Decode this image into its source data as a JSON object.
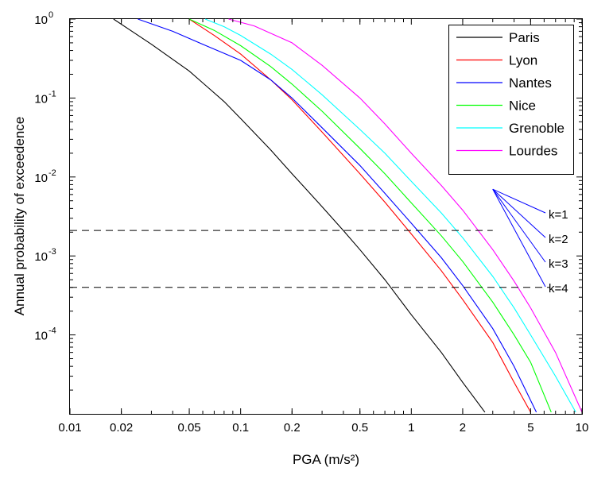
{
  "chart_data": {
    "type": "line",
    "xscale": "log",
    "yscale": "log",
    "xlim": [
      0.01,
      10
    ],
    "ylim": [
      1e-05,
      1
    ],
    "xlabel": "PGA (m/s²)",
    "ylabel": "Annual probability of exceedence",
    "x_ticks": [
      {
        "value": 0.01,
        "label": "0.01"
      },
      {
        "value": 0.02,
        "label": "0.02"
      },
      {
        "value": 0.05,
        "label": "0.05"
      },
      {
        "value": 0.1,
        "label": "0.1"
      },
      {
        "value": 0.2,
        "label": "0.2"
      },
      {
        "value": 0.5,
        "label": "0.5"
      },
      {
        "value": 1,
        "label": "1"
      },
      {
        "value": 2,
        "label": "2"
      },
      {
        "value": 5,
        "label": "5"
      },
      {
        "value": 10,
        "label": "10"
      }
    ],
    "y_ticks": [
      {
        "value": 1,
        "label": "10",
        "exp": "0"
      },
      {
        "value": 0.1,
        "label": "10",
        "exp": "-1"
      },
      {
        "value": 0.01,
        "label": "10",
        "exp": "-2"
      },
      {
        "value": 0.001,
        "label": "10",
        "exp": "-3"
      },
      {
        "value": 0.0001,
        "label": "10",
        "exp": "-4"
      }
    ],
    "grid": false,
    "legend_position": "top-right",
    "series": [
      {
        "name": "Paris",
        "color": "#000000",
        "points": [
          [
            0.018,
            1
          ],
          [
            0.022,
            0.75
          ],
          [
            0.03,
            0.48
          ],
          [
            0.05,
            0.22
          ],
          [
            0.08,
            0.09
          ],
          [
            0.1,
            0.055
          ],
          [
            0.15,
            0.022
          ],
          [
            0.2,
            0.011
          ],
          [
            0.3,
            0.0042
          ],
          [
            0.4,
            0.0021
          ],
          [
            0.5,
            0.0012
          ],
          [
            0.7,
            0.0005
          ],
          [
            1,
            0.00018
          ],
          [
            1.5,
            6e-05
          ],
          [
            2,
            2.5e-05
          ],
          [
            2.7,
            1.05e-05
          ]
        ]
      },
      {
        "name": "Lyon",
        "color": "#ff0000",
        "points": [
          [
            0.05,
            1
          ],
          [
            0.07,
            0.62
          ],
          [
            0.1,
            0.36
          ],
          [
            0.15,
            0.17
          ],
          [
            0.2,
            0.095
          ],
          [
            0.3,
            0.037
          ],
          [
            0.5,
            0.011
          ],
          [
            0.7,
            0.0048
          ],
          [
            1,
            0.0019
          ],
          [
            1.5,
            0.00065
          ],
          [
            2,
            0.00028
          ],
          [
            3,
            8e-05
          ],
          [
            4,
            2.5e-05
          ],
          [
            5,
            1.05e-05
          ]
        ]
      },
      {
        "name": "Nantes",
        "color": "#0000ff",
        "points": [
          [
            0.025,
            1
          ],
          [
            0.04,
            0.7
          ],
          [
            0.06,
            0.48
          ],
          [
            0.1,
            0.3
          ],
          [
            0.15,
            0.17
          ],
          [
            0.2,
            0.1
          ],
          [
            0.3,
            0.042
          ],
          [
            0.5,
            0.014
          ],
          [
            0.7,
            0.0062
          ],
          [
            1,
            0.0026
          ],
          [
            1.5,
            0.00095
          ],
          [
            2,
            0.00042
          ],
          [
            3,
            0.00012
          ],
          [
            4,
            4e-05
          ],
          [
            5.4,
            1.05e-05
          ]
        ]
      },
      {
        "name": "Nice",
        "color": "#00ff00",
        "points": [
          [
            0.05,
            1
          ],
          [
            0.07,
            0.72
          ],
          [
            0.1,
            0.46
          ],
          [
            0.15,
            0.25
          ],
          [
            0.2,
            0.15
          ],
          [
            0.3,
            0.068
          ],
          [
            0.5,
            0.023
          ],
          [
            0.7,
            0.011
          ],
          [
            1,
            0.0047
          ],
          [
            1.5,
            0.0018
          ],
          [
            2,
            0.00085
          ],
          [
            3,
            0.00026
          ],
          [
            4,
            0.0001
          ],
          [
            5,
            4.5e-05
          ],
          [
            6.6,
            1.05e-05
          ]
        ]
      },
      {
        "name": "Grenoble",
        "color": "#00ffff",
        "points": [
          [
            0.062,
            1
          ],
          [
            0.08,
            0.8
          ],
          [
            0.1,
            0.62
          ],
          [
            0.15,
            0.36
          ],
          [
            0.2,
            0.23
          ],
          [
            0.3,
            0.11
          ],
          [
            0.5,
            0.04
          ],
          [
            0.7,
            0.02
          ],
          [
            1,
            0.0088
          ],
          [
            1.5,
            0.0035
          ],
          [
            2,
            0.0017
          ],
          [
            3,
            0.00055
          ],
          [
            4,
            0.00022
          ],
          [
            5,
            0.0001
          ],
          [
            7,
            3e-05
          ],
          [
            9.2,
            1.05e-05
          ]
        ]
      },
      {
        "name": "Lourdes",
        "color": "#ff00ff",
        "points": [
          [
            0.085,
            1
          ],
          [
            0.12,
            0.82
          ],
          [
            0.2,
            0.5
          ],
          [
            0.3,
            0.26
          ],
          [
            0.5,
            0.1
          ],
          [
            0.7,
            0.047
          ],
          [
            1,
            0.02
          ],
          [
            1.5,
            0.0078
          ],
          [
            2,
            0.0038
          ],
          [
            3,
            0.0012
          ],
          [
            4,
            0.00048
          ],
          [
            5,
            0.00022
          ],
          [
            7,
            6e-05
          ],
          [
            10,
            1.05e-05
          ]
        ]
      }
    ],
    "hazard_lines": [
      {
        "y": 0.0021,
        "x_end": 3.0
      },
      {
        "y": 0.0004,
        "x_end": 6.5
      }
    ],
    "annotation": {
      "origin": [
        3.0,
        0.007
      ],
      "labels": [
        "k=1",
        "k=2",
        "k=3",
        "k=4"
      ]
    }
  }
}
